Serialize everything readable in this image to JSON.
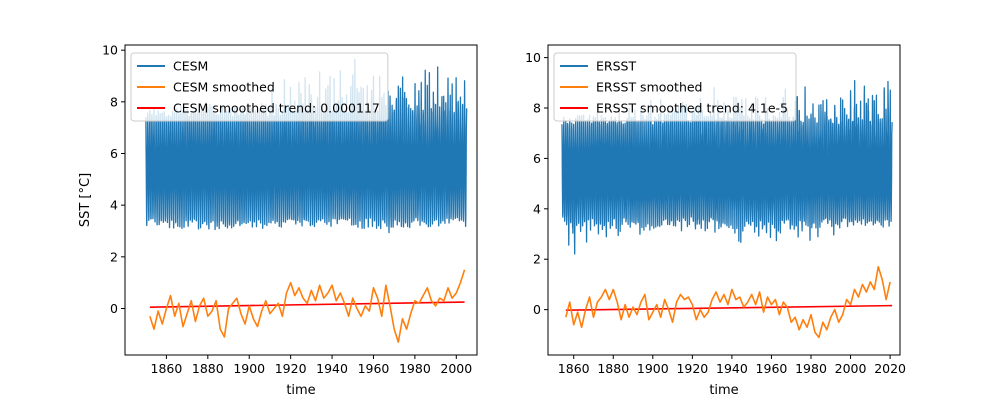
{
  "colors": {
    "raw": "#1f77b4",
    "smoothed": "#ff7f0e",
    "trend": "#ff0000"
  },
  "chart_data": [
    {
      "type": "line",
      "title": "",
      "xlabel": "time",
      "ylabel": "SST [°C]",
      "xlim": [
        1840,
        2010
      ],
      "ylim": [
        -1.8,
        10.2
      ],
      "xticks": [
        "1860",
        "1880",
        "1900",
        "1920",
        "1940",
        "1960",
        "1980",
        "2000"
      ],
      "yticks": [
        "0",
        "2",
        "4",
        "6",
        "8",
        "10"
      ],
      "legend_position": "top-left",
      "raw_series": {
        "name": "CESM",
        "x_start": 1850,
        "x_end": 2005,
        "mean": 5.5,
        "typical_min": 3.3,
        "typical_max": 7.6,
        "min_envelope": [
          [
            1850,
            3.4
          ],
          [
            1870,
            3.2
          ],
          [
            1890,
            3.1
          ],
          [
            1910,
            3.3
          ],
          [
            1930,
            3.5
          ],
          [
            1950,
            3.6
          ],
          [
            1960,
            3.4
          ],
          [
            1968,
            2.6
          ],
          [
            1980,
            3.5
          ],
          [
            1995,
            3.6
          ],
          [
            2005,
            3.6
          ]
        ],
        "max_envelope": [
          [
            1850,
            7.2
          ],
          [
            1870,
            7.8
          ],
          [
            1890,
            8.0
          ],
          [
            1910,
            8.2
          ],
          [
            1920,
            9.4
          ],
          [
            1930,
            9.3
          ],
          [
            1950,
            9.5
          ],
          [
            1970,
            9.3
          ],
          [
            1990,
            9.6
          ],
          [
            2000,
            9.6
          ],
          [
            2005,
            9.0
          ]
        ]
      },
      "smoothed_series": {
        "name": "CESM smoothed",
        "x": [
          1852,
          1854,
          1856,
          1858,
          1860,
          1862,
          1864,
          1866,
          1868,
          1870,
          1872,
          1874,
          1876,
          1878,
          1880,
          1882,
          1884,
          1886,
          1888,
          1890,
          1892,
          1894,
          1896,
          1898,
          1900,
          1902,
          1904,
          1906,
          1908,
          1910,
          1912,
          1914,
          1916,
          1918,
          1920,
          1922,
          1924,
          1926,
          1928,
          1930,
          1932,
          1934,
          1936,
          1938,
          1940,
          1942,
          1944,
          1946,
          1948,
          1950,
          1952,
          1954,
          1956,
          1958,
          1960,
          1962,
          1964,
          1966,
          1968,
          1970,
          1972,
          1974,
          1976,
          1978,
          1980,
          1982,
          1984,
          1986,
          1988,
          1990,
          1992,
          1994,
          1996,
          1998,
          2000,
          2002,
          2004
        ],
        "y": [
          -0.3,
          -0.8,
          -0.1,
          -0.6,
          0.0,
          0.5,
          -0.3,
          0.2,
          -0.7,
          -0.2,
          0.3,
          -0.5,
          0.1,
          0.4,
          -0.3,
          -0.1,
          0.3,
          -0.8,
          -1.1,
          0.0,
          0.2,
          0.4,
          -0.2,
          -0.6,
          0.1,
          -0.4,
          -0.7,
          -0.1,
          0.3,
          -0.2,
          0.0,
          0.2,
          -0.3,
          0.6,
          1.0,
          0.5,
          0.8,
          0.4,
          0.2,
          0.7,
          0.3,
          0.9,
          0.4,
          0.6,
          0.9,
          0.3,
          0.6,
          0.2,
          -0.3,
          0.4,
          0.0,
          -0.3,
          0.1,
          -0.1,
          0.8,
          0.4,
          -0.3,
          0.9,
          0.1,
          -0.8,
          -1.3,
          -0.4,
          -0.8,
          -0.2,
          0.3,
          0.2,
          0.5,
          0.8,
          0.3,
          0.1,
          0.4,
          0.3,
          0.8,
          0.4,
          0.6,
          1.0,
          1.5
        ]
      },
      "trend_series": {
        "name": "CESM smoothed trend: 0.000117",
        "x": [
          1852,
          2004
        ],
        "y": [
          0.05,
          0.25
        ]
      }
    },
    {
      "type": "line",
      "title": "",
      "xlabel": "time",
      "ylabel": "",
      "xlim": [
        1847,
        2025
      ],
      "ylim": [
        -1.8,
        10.5
      ],
      "xticks": [
        "1860",
        "1880",
        "1900",
        "1920",
        "1940",
        "1960",
        "1980",
        "2000",
        "2020"
      ],
      "yticks": [
        "0",
        "2",
        "4",
        "6",
        "8",
        "10"
      ],
      "legend_position": "top-left",
      "raw_series": {
        "name": "ERSST",
        "x_start": 1854,
        "x_end": 2021,
        "mean": 5.4,
        "typical_min": 3.5,
        "typical_max": 7.5,
        "min_envelope": [
          [
            1854,
            4.0
          ],
          [
            1858,
            1.7
          ],
          [
            1865,
            2.8
          ],
          [
            1880,
            3.0
          ],
          [
            1900,
            3.2
          ],
          [
            1920,
            3.0
          ],
          [
            1950,
            2.6
          ],
          [
            1980,
            2.8
          ],
          [
            2000,
            3.3
          ],
          [
            2021,
            3.4
          ]
        ],
        "max_envelope": [
          [
            1854,
            7.4
          ],
          [
            1870,
            7.8
          ],
          [
            1890,
            8.2
          ],
          [
            1910,
            8.5
          ],
          [
            1930,
            9.0
          ],
          [
            1950,
            8.8
          ],
          [
            1975,
            8.8
          ],
          [
            1990,
            9.0
          ],
          [
            2005,
            9.9
          ],
          [
            2015,
            9.9
          ],
          [
            2021,
            9.2
          ]
        ]
      },
      "smoothed_series": {
        "name": "ERSST smoothed",
        "x": [
          1856,
          1858,
          1860,
          1862,
          1864,
          1866,
          1868,
          1870,
          1872,
          1874,
          1876,
          1878,
          1880,
          1882,
          1884,
          1886,
          1888,
          1890,
          1892,
          1894,
          1896,
          1898,
          1900,
          1902,
          1904,
          1906,
          1908,
          1910,
          1912,
          1914,
          1916,
          1918,
          1920,
          1922,
          1924,
          1926,
          1928,
          1930,
          1932,
          1934,
          1936,
          1938,
          1940,
          1942,
          1944,
          1946,
          1948,
          1950,
          1952,
          1954,
          1956,
          1958,
          1960,
          1962,
          1964,
          1966,
          1968,
          1970,
          1972,
          1974,
          1976,
          1978,
          1980,
          1982,
          1984,
          1986,
          1988,
          1990,
          1992,
          1994,
          1996,
          1998,
          2000,
          2002,
          2004,
          2006,
          2008,
          2010,
          2012,
          2014,
          2016,
          2018,
          2020
        ],
        "y": [
          -0.3,
          0.3,
          -0.6,
          -0.1,
          -0.7,
          0.0,
          0.5,
          -0.3,
          0.3,
          0.5,
          0.8,
          0.4,
          0.8,
          0.3,
          -0.4,
          0.2,
          -0.3,
          0.1,
          -0.2,
          0.3,
          0.6,
          -0.4,
          -0.1,
          0.2,
          -0.3,
          0.4,
          0.0,
          -0.5,
          0.3,
          0.6,
          0.4,
          0.5,
          0.2,
          -0.4,
          0.0,
          -0.3,
          -0.1,
          0.4,
          0.7,
          0.3,
          0.6,
          0.2,
          0.8,
          0.4,
          0.5,
          0.1,
          0.3,
          0.6,
          0.2,
          0.7,
          -0.1,
          0.5,
          0.2,
          0.4,
          -0.2,
          0.3,
          0.1,
          -0.5,
          -0.3,
          -0.8,
          -0.4,
          -0.7,
          -0.2,
          -0.9,
          -1.1,
          -0.5,
          -0.8,
          -0.3,
          0.0,
          -0.5,
          -0.2,
          0.4,
          0.2,
          0.8,
          0.5,
          1.0,
          0.7,
          1.1,
          0.8,
          1.7,
          1.2,
          0.4,
          1.1
        ]
      },
      "trend_series": {
        "name": "ERSST smoothed trend: 4.1e-5",
        "x": [
          1856,
          2021
        ],
        "y": [
          -0.02,
          0.16
        ]
      }
    }
  ]
}
